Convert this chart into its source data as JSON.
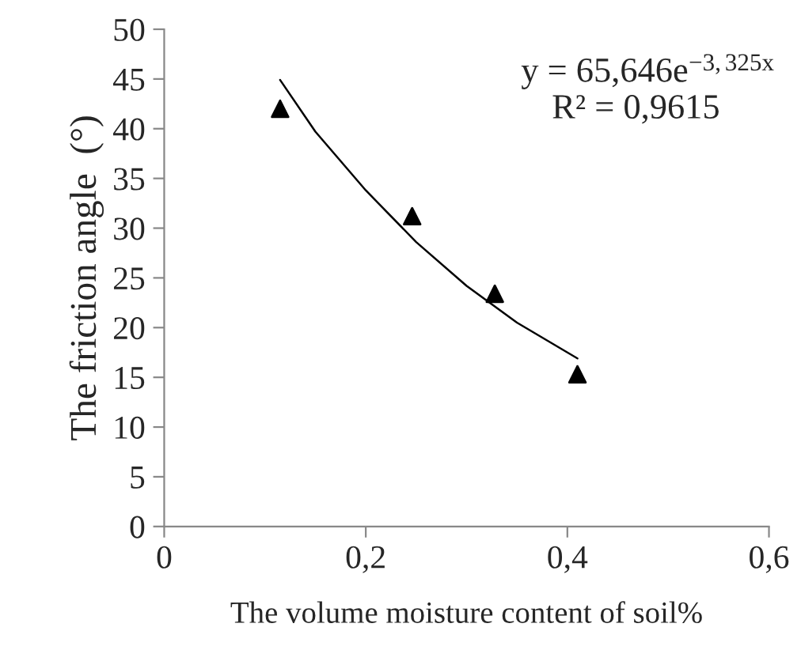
{
  "chart_data": {
    "type": "scatter",
    "xlabel": "The volume moisture content of soil%",
    "ylabel": "The friction angle  (°)",
    "xlim": [
      0,
      0.6
    ],
    "xticks": [
      0,
      {
        "value": 0.2,
        "label": "0,2"
      },
      {
        "value": 0.4,
        "label": "0,4"
      },
      {
        "value": 0.6,
        "label": "0,6"
      }
    ],
    "ylim": [
      0,
      50
    ],
    "yticks": [
      0,
      5,
      10,
      15,
      20,
      25,
      30,
      35,
      40,
      45,
      50
    ],
    "grid": false,
    "series": [
      {
        "color": "#000000",
        "marker": "triangle",
        "x": [
          0.115,
          0.246,
          0.328,
          0.41
        ],
        "values": [
          42,
          31.2,
          23.4,
          15.3
        ]
      },
      {
        "type": "line",
        "color": "#000000",
        "marker": "none",
        "line_style": "solid",
        "x": [
          0.115,
          0.15,
          0.2,
          0.25,
          0.3,
          0.35,
          0.41
        ],
        "values": [
          44.9,
          39.7,
          33.8,
          28.6,
          24.2,
          20.5,
          16.9
        ]
      }
    ],
    "annotations": [
      "y = 65,646e$^{−3,325x}$",
      "R² = 0,9615"
    ]
  }
}
